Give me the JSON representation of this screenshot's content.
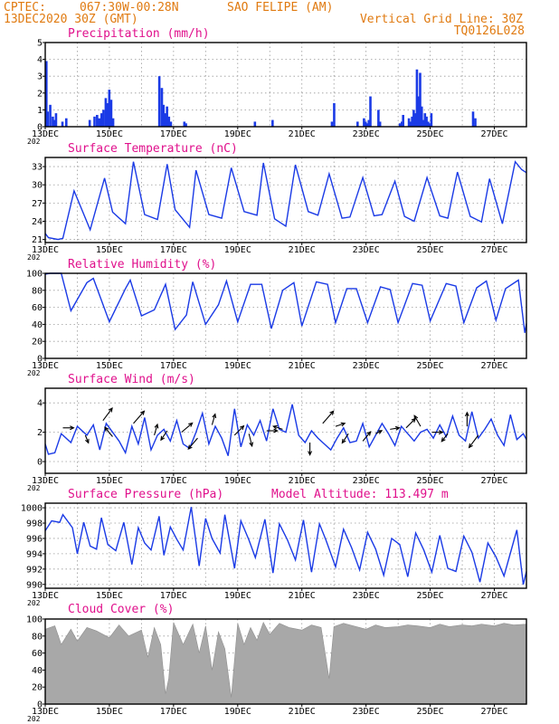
{
  "header": {
    "source": "CPTEC:",
    "coords": "067:30W-00:28N",
    "station": "SAO FELIPE (AM)",
    "run": "13DEC2020 30Z (GMT)",
    "grid_line": "Vertical Grid Line: 30Z",
    "model": "TQ0126L028"
  },
  "x_axis": {
    "labels": [
      "13DEC",
      "15DEC",
      "17DEC",
      "19DEC",
      "21DEC",
      "23DEC",
      "25DEC",
      "27DEC"
    ],
    "year_label": "202"
  },
  "colors": {
    "line": "#1a3ae6",
    "bar": "#1a3ae6",
    "cloud": "#a8a8a8",
    "title": "#e0108c",
    "header": "#e07a10"
  },
  "chart_data": [
    {
      "type": "bar",
      "title": "Precipitation (mm/h)",
      "ylim": [
        0,
        5
      ],
      "yticks": [
        0,
        1,
        2,
        3,
        4,
        5
      ],
      "x_range_days": [
        0,
        15
      ],
      "x": [
        0.0,
        0.04,
        0.12,
        0.2,
        0.25,
        0.3,
        0.5,
        0.62,
        1.35,
        1.5,
        1.58,
        1.65,
        1.72,
        1.78,
        1.85,
        1.9,
        1.96,
        2.02,
        2.08,
        3.52,
        3.6,
        3.65,
        3.7,
        3.76,
        3.82,
        3.88,
        4.3,
        4.35,
        6.5,
        7.05,
        8.9,
        8.97,
        9.7,
        9.9,
        9.95,
        10.0,
        10.05,
        10.1,
        10.35,
        10.4,
        11.02,
        11.08,
        11.12,
        11.3,
        11.35,
        11.4,
        11.45,
        11.5,
        11.55,
        11.6,
        11.65,
        11.7,
        11.75,
        11.8,
        11.85,
        11.9,
        11.95,
        12.0,
        13.3,
        13.37
      ],
      "values": [
        3.9,
        0.9,
        1.3,
        0.6,
        0.4,
        0.8,
        0.3,
        0.5,
        0.4,
        0.6,
        0.7,
        0.5,
        0.8,
        1.0,
        1.7,
        1.4,
        2.2,
        1.6,
        0.5,
        3.0,
        2.3,
        1.3,
        0.8,
        1.2,
        0.6,
        0.3,
        0.3,
        0.2,
        0.3,
        0.4,
        0.3,
        1.4,
        0.3,
        0.5,
        0.3,
        0.2,
        0.4,
        1.8,
        1.0,
        0.3,
        0.2,
        0.3,
        0.7,
        0.5,
        0.3,
        0.6,
        1.0,
        0.8,
        3.4,
        1.8,
        3.2,
        1.2,
        0.4,
        0.8,
        0.6,
        0.3,
        0.2,
        0.8,
        0.9,
        0.5
      ]
    },
    {
      "type": "line",
      "title": "Surface Temperature (nC)",
      "ylim": [
        20.5,
        34.5
      ],
      "yticks": [
        21,
        24,
        27,
        30,
        33
      ],
      "x_range_days": [
        0,
        15
      ],
      "x": [
        0.0,
        0.1,
        0.4,
        0.55,
        0.9,
        1.4,
        1.85,
        2.1,
        2.5,
        2.75,
        3.1,
        3.5,
        3.8,
        4.05,
        4.5,
        4.7,
        5.1,
        5.5,
        5.8,
        6.2,
        6.6,
        6.8,
        7.15,
        7.5,
        7.8,
        8.2,
        8.5,
        8.85,
        9.25,
        9.5,
        9.9,
        10.25,
        10.5,
        10.9,
        11.2,
        11.5,
        11.9,
        12.3,
        12.55,
        12.85,
        13.25,
        13.6,
        13.85,
        14.25,
        14.65,
        14.85,
        15.0
      ],
      "values": [
        22.0,
        21.3,
        21.0,
        21.2,
        29.0,
        22.6,
        31.1,
        25.5,
        23.6,
        33.8,
        25.1,
        24.3,
        33.4,
        25.9,
        23.0,
        32.4,
        25.1,
        24.5,
        32.8,
        25.6,
        25.0,
        33.6,
        24.4,
        23.2,
        33.3,
        25.6,
        25.0,
        31.8,
        24.5,
        24.7,
        31.2,
        24.9,
        25.1,
        30.6,
        24.8,
        24.0,
        31.2,
        24.9,
        24.5,
        32.1,
        24.8,
        23.9,
        31.0,
        23.6,
        33.8,
        32.5,
        32.0
      ]
    },
    {
      "type": "line",
      "title": "Relative Humidity (%)",
      "ylim": [
        0,
        100
      ],
      "yticks": [
        0,
        20,
        40,
        60,
        80,
        100
      ],
      "x_range_days": [
        0,
        15
      ],
      "x": [
        0.0,
        0.15,
        0.5,
        0.8,
        1.3,
        1.5,
        2.0,
        2.5,
        2.65,
        3.0,
        3.4,
        3.75,
        4.05,
        4.4,
        4.6,
        5.0,
        5.4,
        5.65,
        6.0,
        6.4,
        6.75,
        7.05,
        7.4,
        7.75,
        8.0,
        8.45,
        8.8,
        9.05,
        9.4,
        9.7,
        10.05,
        10.45,
        10.75,
        11.0,
        11.45,
        11.75,
        12.0,
        12.5,
        12.8,
        13.05,
        13.45,
        13.75,
        14.05,
        14.35,
        14.75,
        14.95,
        15.0
      ],
      "values": [
        99.0,
        100.0,
        100.0,
        56.0,
        89.0,
        94.0,
        43.0,
        82.0,
        92.0,
        50.0,
        57.0,
        87.0,
        34.0,
        51.0,
        90.0,
        40.0,
        63.0,
        91.0,
        43.0,
        87.0,
        87.0,
        35.0,
        80.0,
        89.0,
        38.0,
        90.0,
        87.0,
        42.0,
        82.0,
        82.0,
        42.0,
        84.0,
        81.0,
        42.0,
        88.0,
        86.0,
        44.0,
        88.0,
        85.0,
        42.0,
        83.0,
        91.0,
        45.0,
        82.0,
        92.0,
        30.0,
        41.0
      ]
    },
    {
      "type": "line",
      "title": "Surface Wind (m/s)",
      "ylim": [
        -0.8,
        5.0
      ],
      "yticks": [
        0,
        2,
        4
      ],
      "x_range_days": [
        0,
        15
      ],
      "x": [
        0.0,
        0.1,
        0.3,
        0.5,
        0.8,
        1.0,
        1.3,
        1.5,
        1.7,
        1.9,
        2.1,
        2.3,
        2.5,
        2.7,
        2.9,
        3.1,
        3.3,
        3.5,
        3.7,
        3.9,
        4.1,
        4.3,
        4.5,
        4.7,
        4.9,
        5.1,
        5.3,
        5.5,
        5.7,
        5.9,
        6.1,
        6.3,
        6.5,
        6.7,
        6.9,
        7.1,
        7.3,
        7.5,
        7.7,
        7.9,
        8.1,
        8.3,
        8.5,
        8.7,
        8.9,
        9.1,
        9.3,
        9.5,
        9.7,
        9.9,
        10.1,
        10.3,
        10.5,
        10.7,
        10.9,
        11.1,
        11.3,
        11.5,
        11.7,
        11.9,
        12.1,
        12.3,
        12.5,
        12.7,
        12.9,
        13.1,
        13.3,
        13.5,
        13.7,
        13.9,
        14.1,
        14.3,
        14.5,
        14.7,
        14.9,
        15.0
      ],
      "values": [
        1.2,
        0.5,
        0.6,
        1.9,
        1.3,
        2.4,
        1.8,
        2.5,
        0.8,
        2.6,
        2.0,
        1.4,
        0.6,
        2.4,
        1.2,
        3.0,
        0.8,
        1.8,
        2.2,
        1.4,
        2.8,
        1.2,
        0.9,
        2.0,
        3.3,
        1.2,
        2.4,
        1.6,
        0.4,
        3.6,
        1.0,
        2.5,
        1.8,
        2.8,
        1.4,
        3.6,
        2.2,
        2.0,
        3.9,
        1.8,
        1.3,
        2.1,
        1.6,
        1.2,
        0.8,
        1.6,
        2.3,
        1.3,
        1.4,
        2.6,
        1.0,
        1.8,
        2.6,
        1.9,
        1.1,
        2.4,
        1.9,
        1.4,
        2.0,
        2.2,
        1.6,
        2.5,
        1.7,
        3.1,
        1.8,
        1.4,
        3.4,
        1.6,
        2.2,
        2.9,
        1.8,
        1.1,
        3.2,
        1.5,
        1.9,
        1.5
      ],
      "vectors": {
        "x": [
          0.55,
          1.25,
          1.8,
          2.1,
          2.75,
          3.4,
          3.8,
          4.25,
          4.75,
          5.2,
          5.9,
          6.35,
          6.9,
          7.4,
          8.25,
          8.65,
          9.05,
          9.45,
          9.9,
          10.3,
          10.75,
          11.25,
          11.7,
          12.05,
          12.55,
          13.15,
          13.5
        ],
        "y": [
          2.3,
          1.8,
          2.8,
          1.7,
          2.6,
          1.8,
          2.1,
          2.0,
          1.6,
          2.5,
          1.8,
          1.9,
          2.1,
          2.2,
          1.3,
          2.6,
          2.4,
          1.9,
          1.4,
          1.9,
          2.2,
          2.3,
          2.4,
          2.0,
          1.9,
          2.4,
          1.8
        ],
        "dx": [
          0.35,
          0.1,
          0.3,
          -0.25,
          0.35,
          0.1,
          -0.2,
          0.35,
          -0.3,
          0.1,
          0.3,
          0.1,
          0.35,
          -0.3,
          0.0,
          0.35,
          0.3,
          -0.2,
          0.25,
          0.2,
          0.3,
          0.3,
          -0.2,
          0.35,
          -0.2,
          0.0,
          -0.3
        ],
        "dy": [
          0.0,
          -0.25,
          0.4,
          0.3,
          0.4,
          0.35,
          -0.3,
          0.3,
          -0.35,
          0.35,
          0.3,
          -0.4,
          0.0,
          0.1,
          -0.4,
          0.4,
          0.1,
          -0.3,
          0.3,
          0.1,
          0.05,
          0.3,
          0.35,
          0.0,
          -0.25,
          0.45,
          -0.4
        ]
      }
    },
    {
      "type": "line",
      "title": "Surface Pressure (hPa)",
      "annotation": "Model Altitude: 113.497 m",
      "ylim": [
        989.5,
        1000.6
      ],
      "yticks": [
        990,
        992,
        994,
        996,
        998,
        1000
      ],
      "x_range_days": [
        0,
        15
      ],
      "x": [
        0.0,
        0.2,
        0.45,
        0.55,
        0.85,
        1.0,
        1.2,
        1.4,
        1.6,
        1.75,
        1.95,
        2.2,
        2.45,
        2.7,
        2.9,
        3.1,
        3.3,
        3.55,
        3.7,
        3.9,
        4.1,
        4.3,
        4.55,
        4.8,
        5.0,
        5.2,
        5.45,
        5.6,
        5.9,
        6.1,
        6.35,
        6.55,
        6.85,
        7.1,
        7.3,
        7.55,
        7.8,
        8.05,
        8.3,
        8.55,
        8.75,
        9.05,
        9.3,
        9.55,
        9.8,
        10.05,
        10.3,
        10.55,
        10.8,
        11.05,
        11.3,
        11.55,
        11.8,
        12.05,
        12.3,
        12.55,
        12.8,
        13.05,
        13.3,
        13.55,
        13.8,
        14.05,
        14.3,
        14.5,
        14.7,
        14.9,
        15.0
      ],
      "values": [
        997.0,
        998.3,
        998.1,
        999.1,
        997.4,
        994.0,
        998.1,
        995.0,
        994.6,
        998.7,
        995.2,
        994.4,
        998.1,
        992.6,
        997.4,
        995.4,
        994.5,
        998.9,
        993.8,
        997.5,
        995.9,
        994.5,
        1000.1,
        992.4,
        998.6,
        996.0,
        994.1,
        999.1,
        992.1,
        998.3,
        995.8,
        993.5,
        998.5,
        991.5,
        997.9,
        995.8,
        993.2,
        998.4,
        991.6,
        997.9,
        995.8,
        992.3,
        997.2,
        994.8,
        991.9,
        996.8,
        994.6,
        991.2,
        996.0,
        995.2,
        991.0,
        996.7,
        994.5,
        991.6,
        996.4,
        992.1,
        991.7,
        996.3,
        994.2,
        990.3,
        995.4,
        993.6,
        991.1,
        994.1,
        997.1,
        990.0,
        991.7
      ]
    },
    {
      "type": "area",
      "title": "Cloud Cover (%)",
      "ylim": [
        0,
        100
      ],
      "yticks": [
        0,
        20,
        40,
        60,
        80,
        100
      ],
      "x_range_days": [
        0,
        15
      ],
      "x": [
        0.0,
        0.3,
        0.5,
        0.8,
        1.0,
        1.3,
        1.6,
        2.0,
        2.3,
        2.6,
        3.0,
        3.2,
        3.4,
        3.6,
        3.75,
        3.85,
        4.0,
        4.3,
        4.6,
        4.8,
        5.0,
        5.2,
        5.4,
        5.6,
        5.8,
        6.0,
        6.2,
        6.4,
        6.6,
        6.8,
        7.0,
        7.3,
        7.6,
        8.0,
        8.3,
        8.6,
        8.85,
        9.0,
        9.3,
        9.6,
        10.0,
        10.3,
        10.6,
        11.0,
        11.3,
        11.6,
        12.0,
        12.3,
        12.6,
        13.0,
        13.3,
        13.6,
        14.0,
        14.3,
        14.6,
        15.0
      ],
      "values": [
        88,
        92,
        70,
        88,
        74,
        90,
        86,
        78,
        93,
        80,
        87,
        55,
        90,
        70,
        12,
        30,
        96,
        70,
        94,
        60,
        92,
        40,
        85,
        65,
        8,
        95,
        70,
        90,
        75,
        96,
        82,
        95,
        90,
        87,
        93,
        90,
        30,
        91,
        95,
        92,
        88,
        93,
        90,
        91,
        93,
        92,
        90,
        94,
        91,
        93,
        92,
        94,
        92,
        95,
        93,
        94
      ]
    }
  ]
}
